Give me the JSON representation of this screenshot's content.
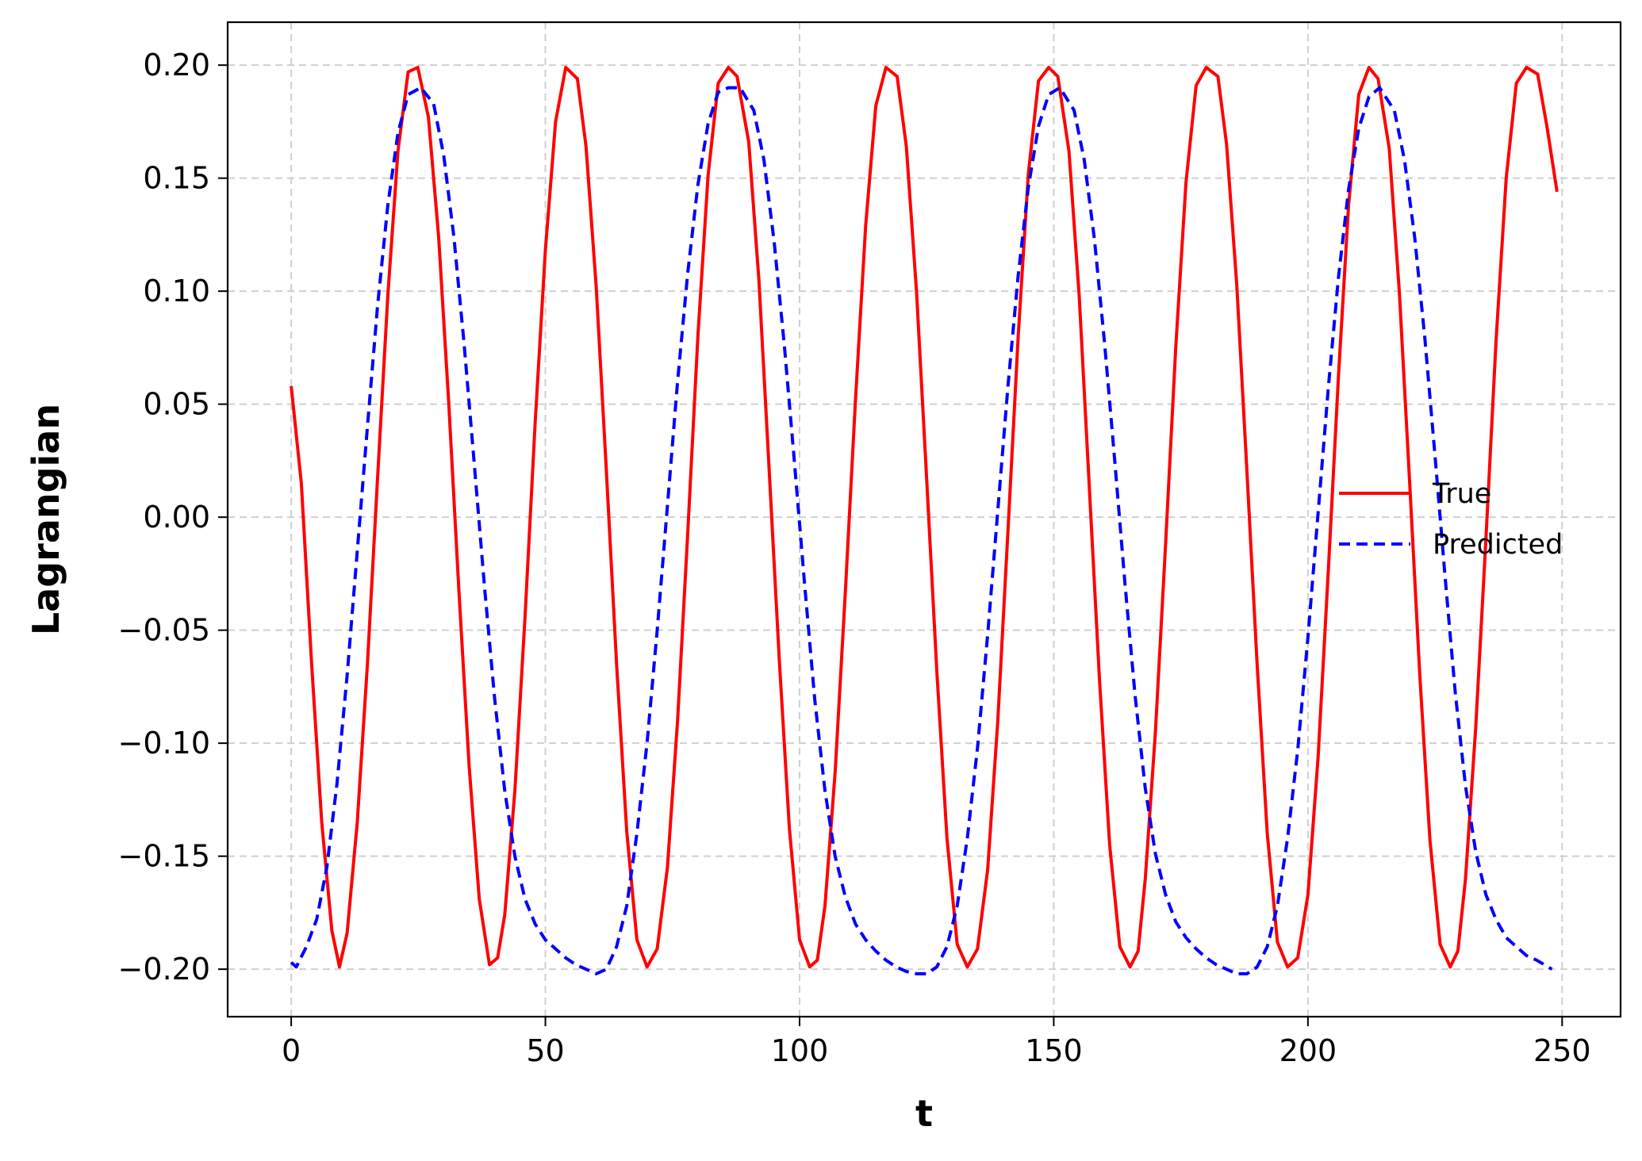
{
  "chart_data": {
    "type": "line",
    "title": "",
    "xlabel": "t",
    "ylabel": "Lagrangian",
    "xlim": [
      -12.5,
      261.5
    ],
    "ylim": [
      -0.221,
      0.219
    ],
    "grid": true,
    "legend_position": "center-right",
    "xticks": [
      0,
      50,
      100,
      150,
      200,
      250
    ],
    "xtick_labels": [
      "0",
      "50",
      "100",
      "150",
      "200",
      "250"
    ],
    "yticks": [
      0.2,
      0.15,
      0.1,
      0.05,
      0.0,
      -0.05,
      -0.1,
      -0.15,
      -0.2
    ],
    "ytick_labels": [
      "0.20",
      "0.15",
      "0.10",
      "0.05",
      "0.00",
      "−0.05",
      "−0.10",
      "−0.15",
      "−0.20"
    ],
    "series": [
      {
        "name": "True",
        "color": "#ff0000",
        "style": "solid",
        "x": [
          0,
          2,
          4,
          6,
          8,
          9.5,
          11,
          13,
          15,
          17,
          19,
          21,
          23,
          24.9,
          27,
          29,
          31,
          33,
          35,
          37,
          39,
          40.6,
          42,
          44,
          46,
          48,
          50,
          52,
          54,
          56.3,
          58,
          60,
          62,
          64,
          66,
          68,
          70,
          72.0,
          74,
          76,
          78,
          80,
          82,
          84,
          86,
          87.7,
          90,
          92,
          94,
          96,
          98,
          100,
          102,
          103.5,
          105,
          107,
          109,
          111,
          113,
          115,
          117,
          119.2,
          121,
          123,
          125,
          127,
          129,
          131,
          133,
          135.0,
          137,
          139,
          141,
          143,
          145,
          147,
          149,
          150.8,
          153,
          155,
          157,
          159,
          161,
          163,
          165,
          166.6,
          168,
          170,
          172,
          174,
          176,
          178,
          180,
          182.3,
          184,
          186,
          188,
          190,
          192,
          194,
          196,
          198.0,
          200,
          202,
          204,
          206,
          208,
          210,
          212,
          213.8,
          216,
          218,
          220,
          222,
          224,
          226,
          228,
          229.5,
          231,
          233,
          235,
          237,
          239,
          241,
          243,
          245.2,
          247,
          249
        ],
        "y": [
          0.058,
          0.015,
          -0.064,
          -0.135,
          -0.183,
          -0.199,
          -0.184,
          -0.135,
          -0.065,
          0.018,
          0.098,
          0.162,
          0.197,
          0.199,
          0.177,
          0.124,
          0.05,
          -0.033,
          -0.11,
          -0.169,
          -0.198,
          -0.195,
          -0.176,
          -0.121,
          -0.044,
          0.042,
          0.118,
          0.175,
          0.199,
          0.194,
          0.164,
          0.102,
          0.02,
          -0.065,
          -0.139,
          -0.187,
          -0.199,
          -0.191,
          -0.155,
          -0.09,
          -0.007,
          0.08,
          0.151,
          0.192,
          0.199,
          0.195,
          0.166,
          0.105,
          0.022,
          -0.063,
          -0.138,
          -0.187,
          -0.199,
          -0.196,
          -0.172,
          -0.113,
          -0.033,
          0.052,
          0.129,
          0.182,
          0.199,
          0.195,
          0.164,
          0.1,
          0.017,
          -0.068,
          -0.142,
          -0.189,
          -0.199,
          -0.191,
          -0.156,
          -0.09,
          -0.006,
          0.08,
          0.152,
          0.193,
          0.199,
          0.195,
          0.162,
          0.098,
          0.013,
          -0.072,
          -0.145,
          -0.19,
          -0.199,
          -0.192,
          -0.16,
          -0.095,
          -0.012,
          0.075,
          0.148,
          0.191,
          0.199,
          0.195,
          0.165,
          0.103,
          0.02,
          -0.065,
          -0.14,
          -0.188,
          -0.199,
          -0.195,
          -0.167,
          -0.106,
          -0.024,
          0.062,
          0.138,
          0.187,
          0.199,
          0.194,
          0.163,
          0.099,
          0.016,
          -0.07,
          -0.143,
          -0.189,
          -0.199,
          -0.192,
          -0.16,
          -0.093,
          -0.01,
          0.078,
          0.15,
          0.192,
          0.199,
          0.196,
          0.173,
          0.144
        ]
      },
      {
        "name": "Predicted",
        "color": "#0000ff",
        "style": "dashed",
        "x": [
          0,
          1,
          3,
          5,
          7,
          9,
          11,
          13,
          15,
          17,
          19,
          21,
          23,
          25.5,
          28,
          30,
          32,
          34,
          36,
          38,
          40,
          42,
          44,
          46,
          48,
          50,
          52,
          54,
          56,
          58,
          60,
          62,
          64,
          66,
          68,
          70,
          72,
          74,
          76,
          78,
          80,
          82,
          84,
          86,
          88.3,
          91,
          93,
          95,
          97,
          99,
          101,
          103,
          105,
          107,
          109,
          111,
          113,
          115,
          117,
          119,
          121,
          123,
          125,
          127,
          129,
          131,
          133,
          135,
          137,
          139,
          141,
          143,
          145,
          147,
          149,
          151.2,
          154,
          156,
          158,
          160,
          162,
          164,
          166,
          168,
          170,
          172,
          174,
          176,
          178,
          180,
          182,
          184,
          186,
          188,
          190,
          192,
          194,
          196,
          198,
          200,
          202,
          204,
          206,
          208,
          210,
          212,
          214.1,
          217,
          219,
          221,
          223,
          225,
          227,
          229,
          231,
          233,
          235,
          237,
          239,
          241,
          243,
          245,
          248
        ],
        "y": [
          -0.197,
          -0.199,
          -0.19,
          -0.178,
          -0.155,
          -0.118,
          -0.07,
          -0.015,
          0.04,
          0.094,
          0.138,
          0.17,
          0.187,
          0.19,
          0.183,
          0.16,
          0.124,
          0.077,
          0.024,
          -0.03,
          -0.08,
          -0.121,
          -0.15,
          -0.169,
          -0.18,
          -0.187,
          -0.191,
          -0.195,
          -0.198,
          -0.2,
          -0.202,
          -0.2,
          -0.19,
          -0.172,
          -0.14,
          -0.1,
          -0.05,
          0.005,
          0.06,
          0.108,
          0.147,
          0.174,
          0.188,
          0.19,
          0.19,
          0.18,
          0.158,
          0.122,
          0.076,
          0.024,
          -0.03,
          -0.081,
          -0.121,
          -0.15,
          -0.168,
          -0.18,
          -0.187,
          -0.192,
          -0.196,
          -0.199,
          -0.201,
          -0.202,
          -0.202,
          -0.199,
          -0.19,
          -0.172,
          -0.142,
          -0.102,
          -0.052,
          0.003,
          0.058,
          0.107,
          0.146,
          0.173,
          0.187,
          0.19,
          0.18,
          0.158,
          0.123,
          0.077,
          0.025,
          -0.029,
          -0.079,
          -0.12,
          -0.149,
          -0.167,
          -0.179,
          -0.186,
          -0.191,
          -0.195,
          -0.198,
          -0.2,
          -0.202,
          -0.202,
          -0.199,
          -0.19,
          -0.172,
          -0.142,
          -0.103,
          -0.053,
          0.002,
          0.057,
          0.106,
          0.145,
          0.172,
          0.186,
          0.19,
          0.18,
          0.158,
          0.124,
          0.079,
          0.027,
          -0.027,
          -0.078,
          -0.119,
          -0.148,
          -0.167,
          -0.178,
          -0.186,
          -0.19,
          -0.194,
          -0.196,
          -0.2
        ]
      }
    ]
  }
}
